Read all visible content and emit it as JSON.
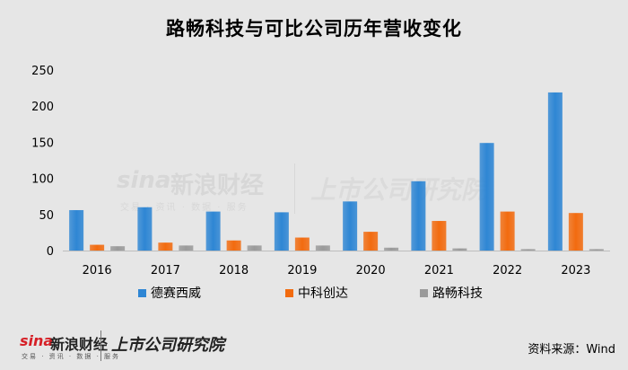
{
  "brand": {
    "wm_name_a": "sina",
    "wm_name_b": "新浪财经",
    "wm_sub": "交易 · 资讯 · 数据 · 服务",
    "wm_name_c": "上市公司研究院",
    "ft_sub": "交易 · 资讯 · 数据 · 服务"
  },
  "source": "资料来源：Wind",
  "colors": {
    "series": [
      "#2e86d4",
      "#f26b0f",
      "#9a9a9a"
    ],
    "background": "#e6e6e6",
    "axis": "#bdbdbd"
  },
  "chart_data": {
    "type": "bar",
    "title": "路畅科技与可比公司历年营收变化",
    "categories": [
      "2016",
      "2017",
      "2018",
      "2019",
      "2020",
      "2021",
      "2022",
      "2023"
    ],
    "series": [
      {
        "name": "德赛西威",
        "values": [
          56,
          60,
          54,
          53,
          68,
          96,
          149,
          219
        ]
      },
      {
        "name": "中科创达",
        "values": [
          8,
          11,
          14,
          18,
          26,
          41,
          54,
          52
        ]
      },
      {
        "name": "路畅科技",
        "values": [
          6,
          7,
          7,
          7,
          4,
          3,
          2,
          2
        ]
      }
    ],
    "ylim": [
      0,
      250
    ],
    "yticks": [
      "0",
      "50",
      "100",
      "150",
      "200",
      "250"
    ],
    "legend": "bottom",
    "grid": false
  }
}
